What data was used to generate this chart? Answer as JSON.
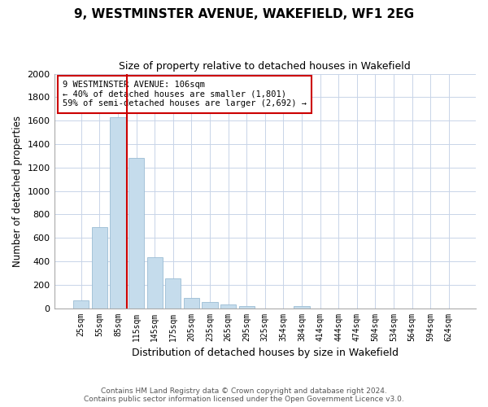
{
  "title": "9, WESTMINSTER AVENUE, WAKEFIELD, WF1 2EG",
  "subtitle": "Size of property relative to detached houses in Wakefield",
  "xlabel": "Distribution of detached houses by size in Wakefield",
  "ylabel": "Number of detached properties",
  "bar_labels": [
    "25sqm",
    "55sqm",
    "85sqm",
    "115sqm",
    "145sqm",
    "175sqm",
    "205sqm",
    "235sqm",
    "265sqm",
    "295sqm",
    "325sqm",
    "354sqm",
    "384sqm",
    "414sqm",
    "444sqm",
    "474sqm",
    "504sqm",
    "534sqm",
    "564sqm",
    "594sqm",
    "624sqm"
  ],
  "bar_values": [
    65,
    690,
    1630,
    1280,
    435,
    255,
    90,
    50,
    30,
    20,
    0,
    0,
    15,
    0,
    0,
    0,
    0,
    0,
    0,
    0,
    0
  ],
  "bar_color": "#c5dcec",
  "bar_edge_color": "#9bbdd4",
  "property_line_color": "#cc0000",
  "ylim": [
    0,
    2000
  ],
  "yticks": [
    0,
    200,
    400,
    600,
    800,
    1000,
    1200,
    1400,
    1600,
    1800,
    2000
  ],
  "annotation_title": "9 WESTMINSTER AVENUE: 106sqm",
  "annotation_line1": "← 40% of detached houses are smaller (1,801)",
  "annotation_line2": "59% of semi-detached houses are larger (2,692) →",
  "annotation_box_color": "#ffffff",
  "annotation_box_edge": "#cc0000",
  "footer_line1": "Contains HM Land Registry data © Crown copyright and database right 2024.",
  "footer_line2": "Contains public sector information licensed under the Open Government Licence v3.0.",
  "background_color": "#ffffff",
  "grid_color": "#c8d4e8"
}
